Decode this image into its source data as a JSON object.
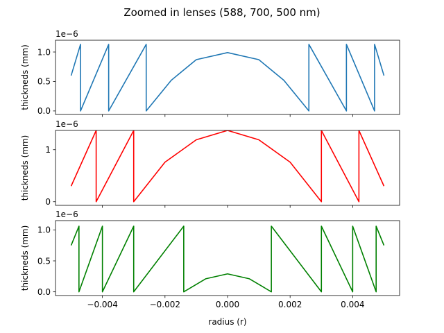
{
  "figure": {
    "title": "Zoomed in lenses (588, 700, 500 nm)"
  },
  "chart_data": [
    {
      "type": "line",
      "title": "",
      "xlabel": "",
      "ylabel": "thickneds (mm)",
      "y_offset_text": "1e−6",
      "xlim": [
        -0.0055,
        0.0055
      ],
      "ylim": [
        -0.06,
        1.2
      ],
      "yticks": [
        0.0,
        0.5,
        1.0
      ],
      "yticklabels": [
        "0.0",
        "0.5",
        "1.0"
      ],
      "show_xticklabels": false,
      "grid": false,
      "series": [
        {
          "color": "#1f77b4",
          "x": [
            -0.005,
            -0.0047,
            -0.0047,
            -0.0038,
            -0.0038,
            -0.0026,
            -0.0026,
            -0.0018,
            -0.001,
            0.0,
            0.001,
            0.0018,
            0.0026,
            0.0026,
            0.0038,
            0.0038,
            0.0047,
            0.0047,
            0.005
          ],
          "y": [
            0.6,
            1.13,
            0.0,
            1.13,
            0.0,
            1.13,
            0.0,
            0.52,
            0.87,
            0.99,
            0.87,
            0.52,
            0.0,
            1.13,
            0.0,
            1.13,
            0.0,
            1.13,
            0.6
          ]
        }
      ]
    },
    {
      "type": "line",
      "title": "",
      "xlabel": "",
      "ylabel": "thickneds (mm)",
      "y_offset_text": "1e−6",
      "xlim": [
        -0.0055,
        0.0055
      ],
      "ylim": [
        -0.07,
        1.37
      ],
      "yticks": [
        0,
        1
      ],
      "yticklabels": [
        "0",
        "1"
      ],
      "show_xticklabels": false,
      "grid": false,
      "series": [
        {
          "color": "#ff0000",
          "x": [
            -0.005,
            -0.0042,
            -0.0042,
            -0.003,
            -0.003,
            -0.002,
            -0.001,
            0.0,
            0.001,
            0.002,
            0.003,
            0.003,
            0.0042,
            0.0042,
            0.005
          ],
          "y": [
            0.3,
            1.37,
            0.0,
            1.37,
            0.0,
            0.76,
            1.19,
            1.37,
            1.19,
            0.76,
            0.0,
            1.37,
            0.0,
            1.37,
            0.3
          ]
        }
      ]
    },
    {
      "type": "line",
      "title": "",
      "xlabel": "radius (r)",
      "ylabel": "thickneds (mm)",
      "y_offset_text": "1e−6",
      "xlim": [
        -0.0055,
        0.0055
      ],
      "ylim": [
        -0.06,
        1.15
      ],
      "yticks": [
        0.0,
        0.5,
        1.0
      ],
      "yticklabels": [
        "0.0",
        "0.5",
        "1.0"
      ],
      "xticks": [
        -0.004,
        -0.002,
        0.0,
        0.002,
        0.004
      ],
      "xticklabels": [
        "−0.004",
        "−0.002",
        "0.000",
        "0.002",
        "0.004"
      ],
      "show_xticklabels": true,
      "grid": false,
      "series": [
        {
          "color": "#008000",
          "x": [
            -0.005,
            -0.00475,
            -0.00475,
            -0.004,
            -0.004,
            -0.003,
            -0.003,
            -0.0014,
            -0.0014,
            -0.0007,
            0.0,
            0.0007,
            0.0014,
            0.0014,
            0.003,
            0.003,
            0.004,
            0.004,
            0.00475,
            0.00475,
            0.005
          ],
          "y": [
            0.75,
            1.06,
            0.0,
            1.06,
            0.0,
            1.06,
            0.0,
            1.06,
            0.0,
            0.21,
            0.29,
            0.21,
            0.0,
            1.06,
            0.0,
            1.06,
            0.0,
            1.06,
            0.0,
            1.06,
            0.75
          ]
        }
      ]
    }
  ]
}
